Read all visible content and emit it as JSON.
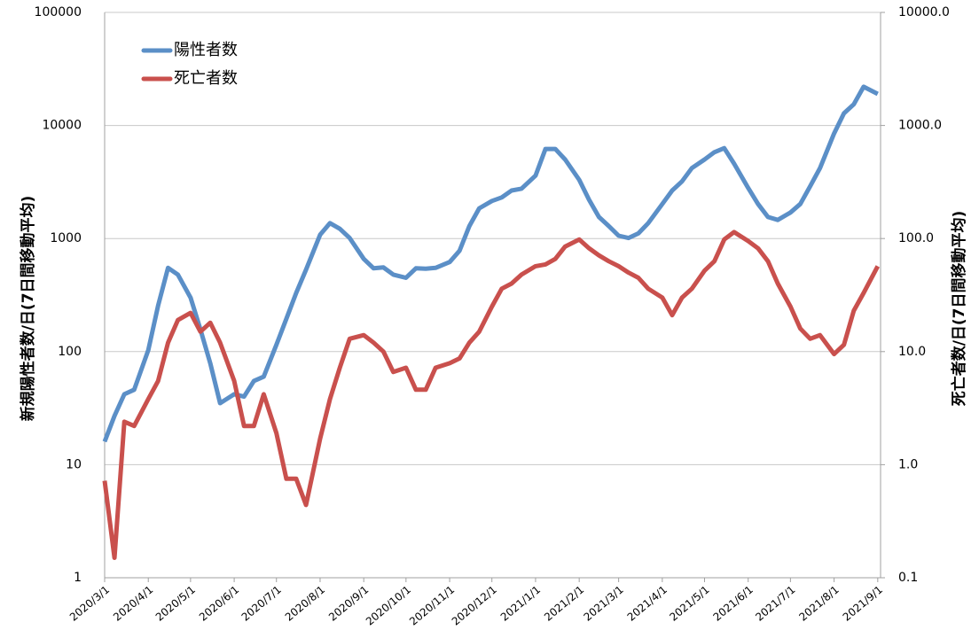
{
  "chart_data": {
    "type": "line",
    "y_label": "新規陽性者数/日(7日間移動平均)",
    "y2_label": "死亡者数/日(7日間移動平均)",
    "log_scale": true,
    "grid": true,
    "legend": "upper left",
    "x": [
      "2020/3/1",
      "2020/3/8",
      "2020/3/15",
      "2020/3/22",
      "2020/4/1",
      "2020/4/8",
      "2020/4/15",
      "2020/4/22",
      "2020/5/1",
      "2020/5/8",
      "2020/5/15",
      "2020/5/22",
      "2020/6/1",
      "2020/6/8",
      "2020/6/15",
      "2020/6/22",
      "2020/7/1",
      "2020/7/8",
      "2020/7/15",
      "2020/7/22",
      "2020/8/1",
      "2020/8/8",
      "2020/8/15",
      "2020/8/22",
      "2020/9/1",
      "2020/9/8",
      "2020/9/15",
      "2020/9/22",
      "2020/10/1",
      "2020/10/8",
      "2020/10/15",
      "2020/10/22",
      "2020/11/1",
      "2020/11/8",
      "2020/11/15",
      "2020/11/22",
      "2020/12/1",
      "2020/12/8",
      "2020/12/15",
      "2020/12/22",
      "2021/1/1",
      "2021/1/8",
      "2021/1/15",
      "2021/1/22",
      "2021/2/1",
      "2021/2/8",
      "2021/2/15",
      "2021/2/22",
      "2021/3/1",
      "2021/3/8",
      "2021/3/15",
      "2021/3/22",
      "2021/4/1",
      "2021/4/8",
      "2021/4/15",
      "2021/4/22",
      "2021/5/1",
      "2021/5/8",
      "2021/5/15",
      "2021/5/22",
      "2021/6/1",
      "2021/6/8",
      "2021/6/15",
      "2021/6/22",
      "2021/7/1",
      "2021/7/8",
      "2021/7/15",
      "2021/7/22",
      "2021/8/1",
      "2021/8/8",
      "2021/8/15",
      "2021/8/22",
      "2021/9/1"
    ],
    "series": [
      {
        "name": "陽性者数",
        "color": "#5b8fc7",
        "values": [
          16,
          27,
          42,
          46,
          103,
          255,
          550,
          480,
          300,
          157,
          79,
          35,
          42,
          40,
          55,
          60,
          115,
          195,
          330,
          530,
          1080,
          1370,
          1220,
          1010,
          660,
          545,
          555,
          480,
          450,
          545,
          540,
          550,
          620,
          780,
          1290,
          1850,
          2150,
          2310,
          2660,
          2760,
          3600,
          6200,
          6200,
          5000,
          3300,
          2200,
          1550,
          1290,
          1060,
          1010,
          1110,
          1370,
          2020,
          2660,
          3200,
          4200,
          5000,
          5800,
          6300,
          4600,
          2800,
          2020,
          1550,
          1460,
          1700,
          2020,
          2900,
          4200,
          8500,
          12800,
          15400,
          22000,
          19000
        ]
      },
      {
        "name": "死亡者数",
        "color": "#c9504d",
        "axis": "y2",
        "values": [
          0.72,
          0.15,
          2.4,
          2.2,
          3.8,
          5.5,
          12,
          19,
          22,
          15,
          18,
          12,
          5.5,
          2.2,
          2.2,
          4.2,
          1.9,
          0.75,
          0.75,
          0.44,
          1.7,
          3.8,
          7.2,
          13,
          14,
          12,
          10,
          6.6,
          7.2,
          4.6,
          4.6,
          7.2,
          7.9,
          8.7,
          12,
          15,
          25,
          36,
          40,
          48,
          57,
          59,
          66,
          85,
          98,
          82,
          71,
          63,
          57,
          50,
          45,
          36,
          30,
          21,
          30,
          36,
          52,
          63,
          98,
          114,
          95,
          82,
          63,
          40,
          25,
          16,
          13,
          14,
          9.5,
          11.5,
          23,
          33,
          57
        ]
      }
    ],
    "xlim": [
      "2020/3/1",
      "2021/9/3"
    ],
    "xticks": [
      "2020/3/1",
      "2020/4/1",
      "2020/5/1",
      "2020/6/1",
      "2020/7/1",
      "2020/8/1",
      "2020/9/1",
      "2020/10/1",
      "2020/11/1",
      "2020/12/1",
      "2021/1/1",
      "2021/2/1",
      "2021/3/1",
      "2021/4/1",
      "2021/5/1",
      "2021/6/1",
      "2021/7/1",
      "2021/8/1",
      "2021/9/1"
    ],
    "ylim": [
      1,
      100000
    ],
    "yticks": [
      1,
      10,
      100,
      1000,
      10000,
      100000
    ],
    "y2lim": [
      0.1,
      10000
    ],
    "y2ticks": [
      0.1,
      {
        "value": 1,
        "label": "1.0"
      },
      {
        "value": 10,
        "label": "10.0"
      },
      {
        "value": 100,
        "label": "100.0"
      },
      {
        "value": 1000,
        "label": "1000.0"
      },
      {
        "value": 10000,
        "label": "10000.0"
      }
    ]
  }
}
